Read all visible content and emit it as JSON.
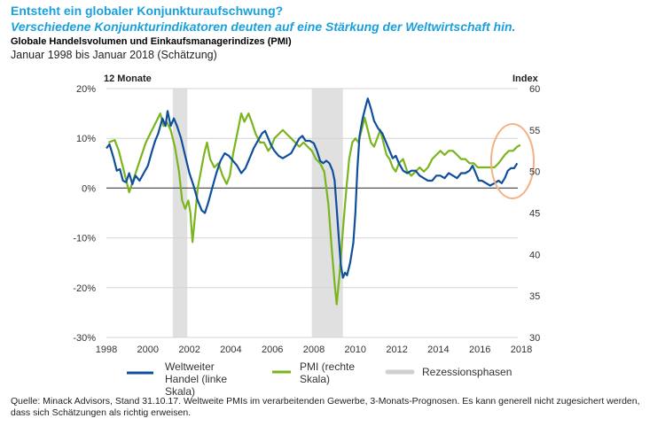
{
  "header": {
    "title": "Entsteht ein globaler Konjunkturaufschwung?",
    "subtitle": "Verschiedene Konjunkturindikatoren deuten auf eine Stärkung der Weltwirtschaft hin.",
    "chart_heading": "Globale Handelsvolumen und Einkaufsmanagerindizes (PMI)",
    "period": "Januar 1998 bis Januar 2018 (Schätzung)"
  },
  "source": "Quelle: Minack Advisors, Stand 31.10.17. Weltweite PMIs im verarbeitenden Gewerbe, 3-Monats-Prognosen. Es kann generell nicht zugesichert werden, dass sich Schätzungen als richtig erweisen.",
  "colors": {
    "trade": "#0f4f9c",
    "pmi": "#7ab51d",
    "recession": "#e0e0e0",
    "highlight": "#f4b183",
    "title": "#1aa0db"
  },
  "chart_data": {
    "type": "line",
    "title": "Globale Handelsvolumen und Einkaufsmanagerindizes (PMI)",
    "xlabel": "",
    "ylabel_left": "12 Monate",
    "ylabel_right": "Index",
    "xlim": [
      1998,
      2018
    ],
    "ylim_left": [
      -30,
      20
    ],
    "ylim_right": [
      30,
      60
    ],
    "x_ticks": [
      "1998",
      "2000",
      "2002",
      "2004",
      "2006",
      "2008",
      "2010",
      "2012",
      "2014",
      "2016",
      "2018"
    ],
    "y_ticks_left": [
      "20%",
      "10%",
      "0%",
      "-10%",
      "-20%",
      "-30%"
    ],
    "y_ticks_right": [
      "60",
      "55",
      "50",
      "45",
      "40",
      "35",
      "30"
    ],
    "grid": true,
    "legend_position": "bottom",
    "recessions": [
      [
        2001.2,
        2001.9
      ],
      [
        2007.9,
        2009.4
      ]
    ],
    "highlight_annotation": "circle around latest values (2017)",
    "series": [
      {
        "name": "Weltweiter Handel (linke Skala)",
        "axis": "left",
        "points": [
          [
            1998.0,
            8.0
          ],
          [
            1998.15,
            8.8
          ],
          [
            1998.35,
            6.0
          ],
          [
            1998.5,
            3.5
          ],
          [
            1998.65,
            3.8
          ],
          [
            1998.8,
            1.5
          ],
          [
            1998.95,
            1.2
          ],
          [
            1999.1,
            3.0
          ],
          [
            1999.25,
            0.8
          ],
          [
            1999.4,
            2.5
          ],
          [
            1999.6,
            1.5
          ],
          [
            1999.8,
            3.0
          ],
          [
            2000.0,
            4.5
          ],
          [
            2000.2,
            7.5
          ],
          [
            2000.35,
            9.5
          ],
          [
            2000.5,
            11.0
          ],
          [
            2000.7,
            14.0
          ],
          [
            2000.85,
            12.5
          ],
          [
            2000.95,
            15.5
          ],
          [
            2001.1,
            12.5
          ],
          [
            2001.25,
            14.0
          ],
          [
            2001.4,
            12.5
          ],
          [
            2001.6,
            10.0
          ],
          [
            2001.8,
            6.5
          ],
          [
            2002.0,
            3.0
          ],
          [
            2002.2,
            0.5
          ],
          [
            2002.4,
            -2.5
          ],
          [
            2002.6,
            -4.5
          ],
          [
            2002.75,
            -5.0
          ],
          [
            2002.9,
            -3.0
          ],
          [
            2003.1,
            0.0
          ],
          [
            2003.3,
            3.0
          ],
          [
            2003.5,
            5.5
          ],
          [
            2003.7,
            7.0
          ],
          [
            2003.9,
            6.5
          ],
          [
            2004.1,
            5.5
          ],
          [
            2004.3,
            4.5
          ],
          [
            2004.5,
            3.0
          ],
          [
            2004.7,
            4.0
          ],
          [
            2004.9,
            6.0
          ],
          [
            2005.1,
            8.0
          ],
          [
            2005.3,
            9.5
          ],
          [
            2005.5,
            11.0
          ],
          [
            2005.65,
            11.5
          ],
          [
            2005.8,
            10.0
          ],
          [
            2005.95,
            8.5
          ],
          [
            2006.1,
            7.5
          ],
          [
            2006.3,
            6.5
          ],
          [
            2006.5,
            6.0
          ],
          [
            2006.7,
            6.5
          ],
          [
            2006.9,
            7.0
          ],
          [
            2007.1,
            8.5
          ],
          [
            2007.3,
            10.0
          ],
          [
            2007.45,
            10.5
          ],
          [
            2007.6,
            9.5
          ],
          [
            2007.8,
            9.5
          ],
          [
            2008.0,
            9.0
          ],
          [
            2008.15,
            7.5
          ],
          [
            2008.3,
            5.5
          ],
          [
            2008.45,
            5.0
          ],
          [
            2008.6,
            5.5
          ],
          [
            2008.75,
            5.0
          ],
          [
            2008.9,
            3.5
          ]
        ],
        "points_right_scale_segment_note": "continues below in data units of left axis",
        "points_cont": [
          [
            2009.0,
            1.5
          ],
          [
            2009.1,
            -4.0
          ],
          [
            2009.2,
            -10.0
          ],
          [
            2009.3,
            -15.5
          ],
          [
            2009.4,
            -18.0
          ],
          [
            2009.5,
            -17.0
          ],
          [
            2009.6,
            -17.5
          ],
          [
            2009.75,
            -15.0
          ],
          [
            2009.9,
            -11.0
          ],
          [
            2010.0,
            -5.0
          ],
          [
            2010.1,
            4.0
          ],
          [
            2010.2,
            10.5
          ],
          [
            2010.35,
            14.0
          ],
          [
            2010.5,
            16.5
          ],
          [
            2010.6,
            18.0
          ],
          [
            2010.75,
            16.0
          ],
          [
            2010.9,
            13.5
          ],
          [
            2011.1,
            12.0
          ],
          [
            2011.3,
            11.0
          ],
          [
            2011.5,
            9.0
          ],
          [
            2011.65,
            7.5
          ],
          [
            2011.8,
            6.0
          ],
          [
            2011.95,
            6.5
          ],
          [
            2012.1,
            5.0
          ],
          [
            2012.3,
            3.5
          ],
          [
            2012.5,
            3.0
          ],
          [
            2012.7,
            3.5
          ],
          [
            2012.9,
            3.5
          ],
          [
            2013.1,
            2.5
          ],
          [
            2013.3,
            2.0
          ],
          [
            2013.5,
            1.5
          ],
          [
            2013.7,
            1.5
          ],
          [
            2013.9,
            2.5
          ],
          [
            2014.1,
            2.5
          ],
          [
            2014.3,
            2.0
          ],
          [
            2014.5,
            3.0
          ],
          [
            2014.7,
            2.5
          ],
          [
            2014.9,
            2.0
          ],
          [
            2015.1,
            3.0
          ],
          [
            2015.3,
            3.0
          ],
          [
            2015.5,
            3.5
          ],
          [
            2015.65,
            4.5
          ],
          [
            2015.8,
            3.0
          ],
          [
            2015.95,
            1.5
          ],
          [
            2016.1,
            1.5
          ],
          [
            2016.3,
            1.0
          ],
          [
            2016.5,
            0.5
          ],
          [
            2016.7,
            1.0
          ],
          [
            2016.9,
            1.5
          ],
          [
            2017.05,
            1.0
          ],
          [
            2017.2,
            2.0
          ],
          [
            2017.35,
            3.5
          ],
          [
            2017.5,
            4.0
          ],
          [
            2017.65,
            4.0
          ],
          [
            2017.8,
            5.0
          ]
        ]
      },
      {
        "name": "PMI (rechte Skala)",
        "axis": "right",
        "points": [
          [
            1998.1,
            53.5
          ],
          [
            1998.4,
            53.8
          ],
          [
            1998.6,
            52.5
          ],
          [
            1998.8,
            50.5
          ],
          [
            1999.0,
            48.5
          ],
          [
            1999.1,
            47.5
          ],
          [
            1999.3,
            49.0
          ],
          [
            1999.5,
            50.5
          ],
          [
            1999.7,
            52.0
          ],
          [
            1999.9,
            53.5
          ],
          [
            2000.1,
            54.5
          ],
          [
            2000.3,
            55.5
          ],
          [
            2000.5,
            56.5
          ],
          [
            2000.6,
            57.0
          ],
          [
            2000.75,
            55.5
          ],
          [
            2000.9,
            56.0
          ],
          [
            2001.1,
            55.0
          ],
          [
            2001.3,
            53.0
          ],
          [
            2001.5,
            50.0
          ],
          [
            2001.65,
            46.5
          ],
          [
            2001.8,
            45.5
          ],
          [
            2001.95,
            46.5
          ],
          [
            2002.05,
            45.0
          ],
          [
            2002.15,
            41.5
          ],
          [
            2002.25,
            44.0
          ],
          [
            2002.4,
            48.0
          ],
          [
            2002.55,
            50.0
          ],
          [
            2002.7,
            52.0
          ],
          [
            2002.85,
            53.5
          ],
          [
            2003.0,
            51.5
          ],
          [
            2003.2,
            50.5
          ],
          [
            2003.4,
            51.0
          ],
          [
            2003.6,
            49.5
          ],
          [
            2003.8,
            48.5
          ],
          [
            2003.95,
            49.5
          ],
          [
            2004.1,
            52.0
          ],
          [
            2004.3,
            54.5
          ],
          [
            2004.5,
            57.0
          ],
          [
            2004.65,
            56.0
          ],
          [
            2004.85,
            57.0
          ],
          [
            2005.0,
            56.0
          ],
          [
            2005.2,
            54.5
          ],
          [
            2005.4,
            53.5
          ],
          [
            2005.6,
            53.5
          ],
          [
            2005.8,
            52.5
          ],
          [
            2005.95,
            53.0
          ],
          [
            2006.1,
            54.0
          ],
          [
            2006.3,
            54.5
          ],
          [
            2006.5,
            55.0
          ],
          [
            2006.7,
            54.5
          ],
          [
            2006.9,
            54.0
          ],
          [
            2007.1,
            53.5
          ],
          [
            2007.3,
            53.0
          ],
          [
            2007.5,
            53.5
          ],
          [
            2007.7,
            53.0
          ],
          [
            2007.9,
            52.5
          ],
          [
            2008.1,
            51.5
          ],
          [
            2008.3,
            51.0
          ],
          [
            2008.5,
            50.0
          ],
          [
            2008.7,
            46.0
          ],
          [
            2008.85,
            41.0
          ],
          [
            2009.0,
            36.5
          ],
          [
            2009.1,
            34.0
          ],
          [
            2009.25,
            38.0
          ],
          [
            2009.4,
            43.0
          ],
          [
            2009.55,
            47.5
          ],
          [
            2009.7,
            51.5
          ],
          [
            2009.85,
            53.5
          ],
          [
            2010.0,
            54.0
          ],
          [
            2010.15,
            53.5
          ],
          [
            2010.3,
            55.0
          ],
          [
            2010.45,
            56.5
          ],
          [
            2010.6,
            55.0
          ],
          [
            2010.75,
            53.5
          ],
          [
            2010.9,
            53.0
          ],
          [
            2011.05,
            54.0
          ],
          [
            2011.2,
            55.0
          ],
          [
            2011.35,
            53.5
          ],
          [
            2011.5,
            52.0
          ],
          [
            2011.65,
            51.5
          ],
          [
            2011.8,
            50.5
          ],
          [
            2011.95,
            50.0
          ],
          [
            2012.1,
            51.0
          ],
          [
            2012.3,
            51.5
          ],
          [
            2012.5,
            50.0
          ],
          [
            2012.7,
            49.5
          ],
          [
            2012.9,
            50.0
          ],
          [
            2013.1,
            50.5
          ],
          [
            2013.3,
            50.0
          ],
          [
            2013.5,
            50.5
          ],
          [
            2013.7,
            51.5
          ],
          [
            2013.9,
            52.0
          ],
          [
            2014.1,
            52.5
          ],
          [
            2014.3,
            52.0
          ],
          [
            2014.5,
            52.5
          ],
          [
            2014.7,
            52.5
          ],
          [
            2014.9,
            52.0
          ],
          [
            2015.1,
            51.5
          ],
          [
            2015.3,
            51.5
          ],
          [
            2015.5,
            51.0
          ],
          [
            2015.7,
            51.0
          ],
          [
            2015.9,
            50.5
          ],
          [
            2016.1,
            50.5
          ],
          [
            2016.3,
            50.5
          ],
          [
            2016.5,
            50.5
          ],
          [
            2016.7,
            50.5
          ],
          [
            2016.9,
            51.0
          ],
          [
            2017.05,
            51.5
          ],
          [
            2017.2,
            52.0
          ],
          [
            2017.4,
            52.5
          ],
          [
            2017.6,
            52.5
          ],
          [
            2017.8,
            53.0
          ],
          [
            2017.95,
            53.2
          ]
        ]
      }
    ]
  },
  "legend": {
    "trade_label_line1": "Weltweiter",
    "trade_label_line2": "Handel (linke",
    "trade_label_line3": "Skala)",
    "pmi_label_line1": "PMI (rechte",
    "pmi_label_line2": "Skala)",
    "recession_label": "Rezessionsphasen"
  }
}
